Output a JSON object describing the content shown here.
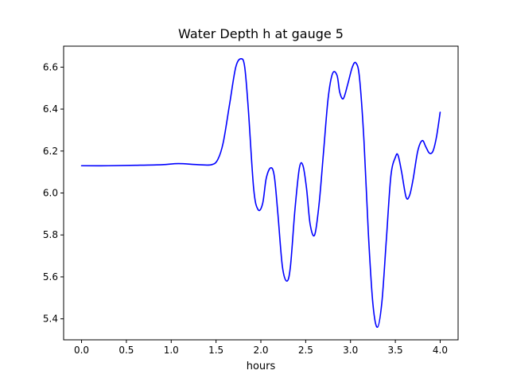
{
  "chart_data": {
    "type": "line",
    "title": "Water Depth h at gauge 5",
    "xlabel": "hours",
    "ylabel": "",
    "xlim": [
      -0.2,
      4.2
    ],
    "ylim": [
      5.3,
      6.7
    ],
    "x_ticks": [
      0.0,
      0.5,
      1.0,
      1.5,
      2.0,
      2.5,
      3.0,
      3.5,
      4.0
    ],
    "x_tick_labels": [
      "0.0",
      "0.5",
      "1.0",
      "1.5",
      "2.0",
      "2.5",
      "3.0",
      "3.5",
      "4.0"
    ],
    "y_ticks": [
      5.4,
      5.6,
      5.8,
      6.0,
      6.2,
      6.4,
      6.6
    ],
    "y_tick_labels": [
      "5.4",
      "5.6",
      "5.8",
      "6.0",
      "6.2",
      "6.4",
      "6.6"
    ],
    "grid": false,
    "legend": "none",
    "series": [
      {
        "color": "#0000ff",
        "x": [
          0.0,
          0.3,
          0.6,
          0.9,
          1.08,
          1.3,
          1.45,
          1.52,
          1.58,
          1.65,
          1.72,
          1.78,
          1.82,
          1.86,
          1.92,
          1.97,
          2.02,
          2.06,
          2.11,
          2.15,
          2.19,
          2.24,
          2.29,
          2.33,
          2.38,
          2.43,
          2.47,
          2.51,
          2.55,
          2.6,
          2.65,
          2.7,
          2.75,
          2.8,
          2.85,
          2.88,
          2.92,
          2.97,
          3.02,
          3.06,
          3.1,
          3.15,
          3.2,
          3.25,
          3.3,
          3.35,
          3.4,
          3.45,
          3.5,
          3.53,
          3.57,
          3.62,
          3.66,
          3.7,
          3.75,
          3.8,
          3.84,
          3.88,
          3.92,
          3.96,
          4.0
        ],
        "y": [
          6.13,
          6.13,
          6.132,
          6.135,
          6.14,
          6.135,
          6.135,
          6.16,
          6.24,
          6.42,
          6.6,
          6.64,
          6.6,
          6.4,
          6.02,
          5.92,
          5.95,
          6.07,
          6.12,
          6.08,
          5.9,
          5.65,
          5.58,
          5.65,
          5.92,
          6.12,
          6.13,
          6.02,
          5.85,
          5.8,
          5.95,
          6.2,
          6.45,
          6.57,
          6.56,
          6.48,
          6.45,
          6.52,
          6.6,
          6.62,
          6.55,
          6.25,
          5.8,
          5.47,
          5.36,
          5.48,
          5.78,
          6.08,
          6.17,
          6.18,
          6.1,
          5.98,
          5.99,
          6.07,
          6.2,
          6.25,
          6.22,
          6.19,
          6.2,
          6.27,
          6.385
        ]
      }
    ]
  }
}
